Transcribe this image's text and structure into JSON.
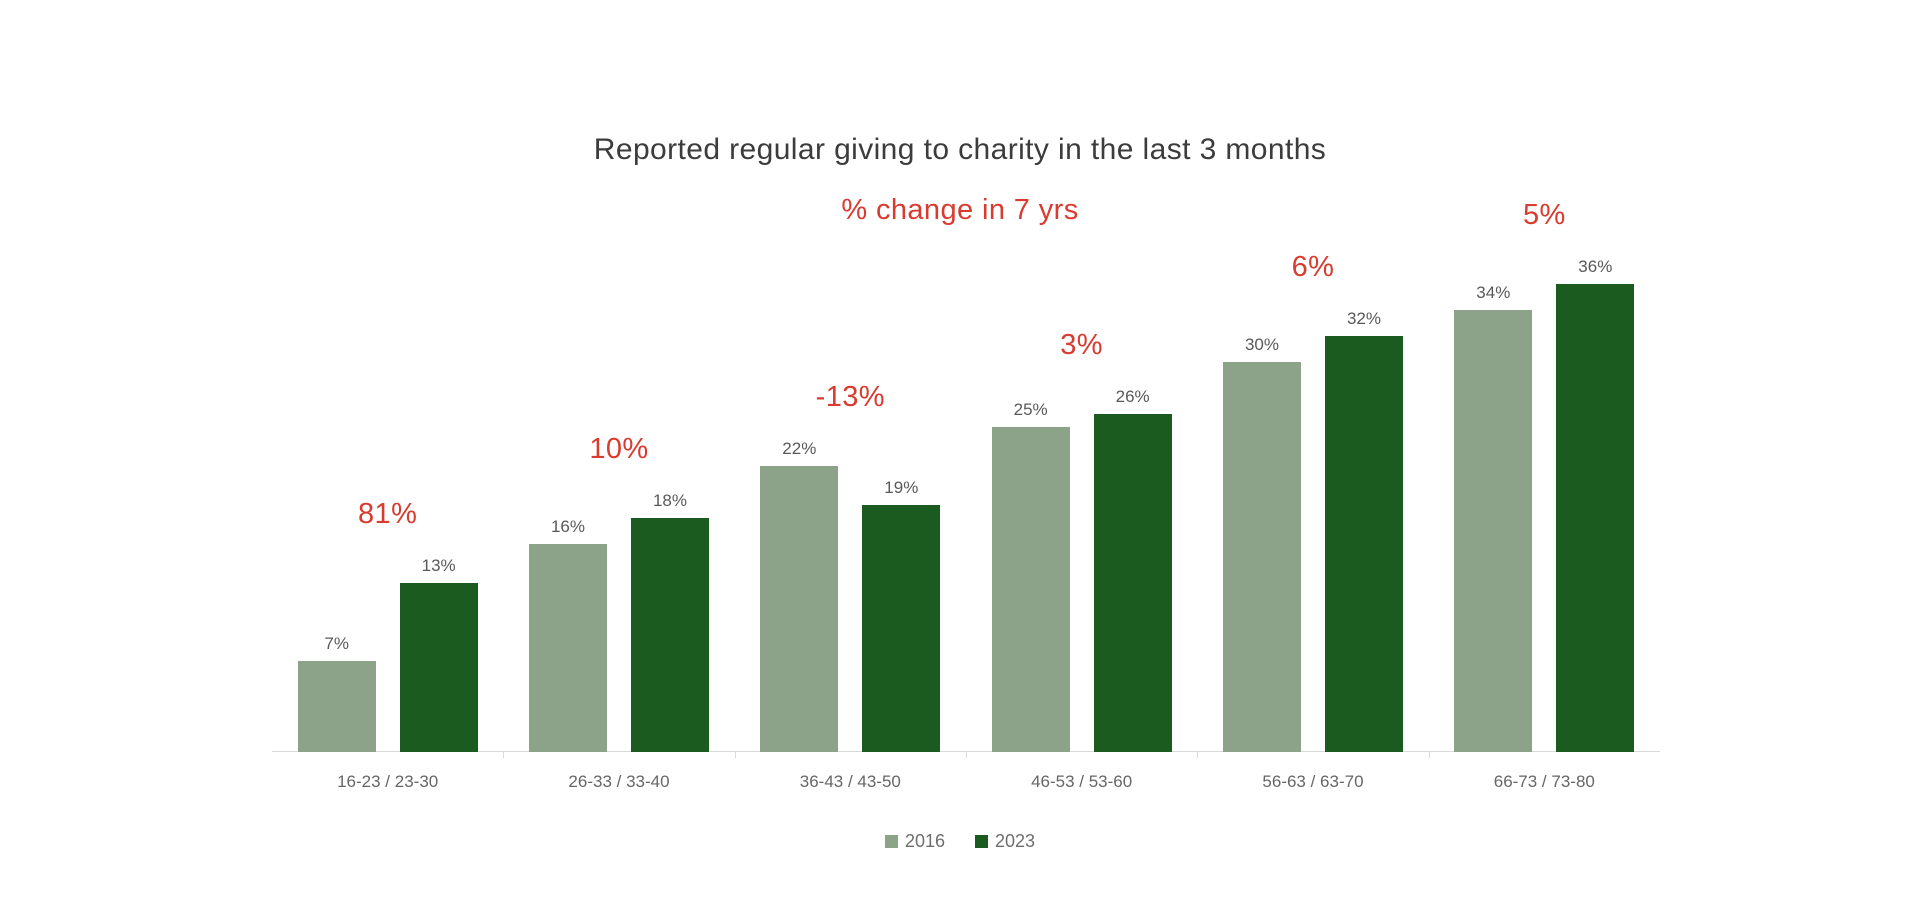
{
  "title": "Reported regular giving to charity in the last 3 months",
  "subtitle": "% change in 7 yrs",
  "colors": {
    "accent_red": "#d83b30",
    "bar_2016": "#8ca38a",
    "bar_2023": "#1c5b20",
    "axis_line": "#d9d9d9",
    "title_text": "#3c3c3c",
    "value_label": "#595959",
    "axis_label": "#666666"
  },
  "chart_data": {
    "type": "bar",
    "title": "Reported regular giving to charity in the last 3 months",
    "subtitle": "% change in 7 yrs",
    "categories": [
      "16-23 / 23-30",
      "26-33 / 33-40",
      "36-43 / 43-50",
      "46-53 / 53-60",
      "56-63 / 63-70",
      "66-73 / 73-80"
    ],
    "series": [
      {
        "name": "2016",
        "color": "#8ca38a",
        "values": [
          7,
          16,
          22,
          25,
          30,
          34
        ]
      },
      {
        "name": "2023",
        "color": "#1c5b20",
        "values": [
          13,
          18,
          19,
          26,
          32,
          36
        ]
      }
    ],
    "change_labels": [
      "81%",
      "10%",
      "-13%",
      "3%",
      "6%",
      "5%"
    ],
    "value_suffix": "%",
    "xlabel": "",
    "ylabel": "",
    "ylim": [
      0,
      40
    ],
    "grid": false,
    "legend_position": "bottom"
  }
}
